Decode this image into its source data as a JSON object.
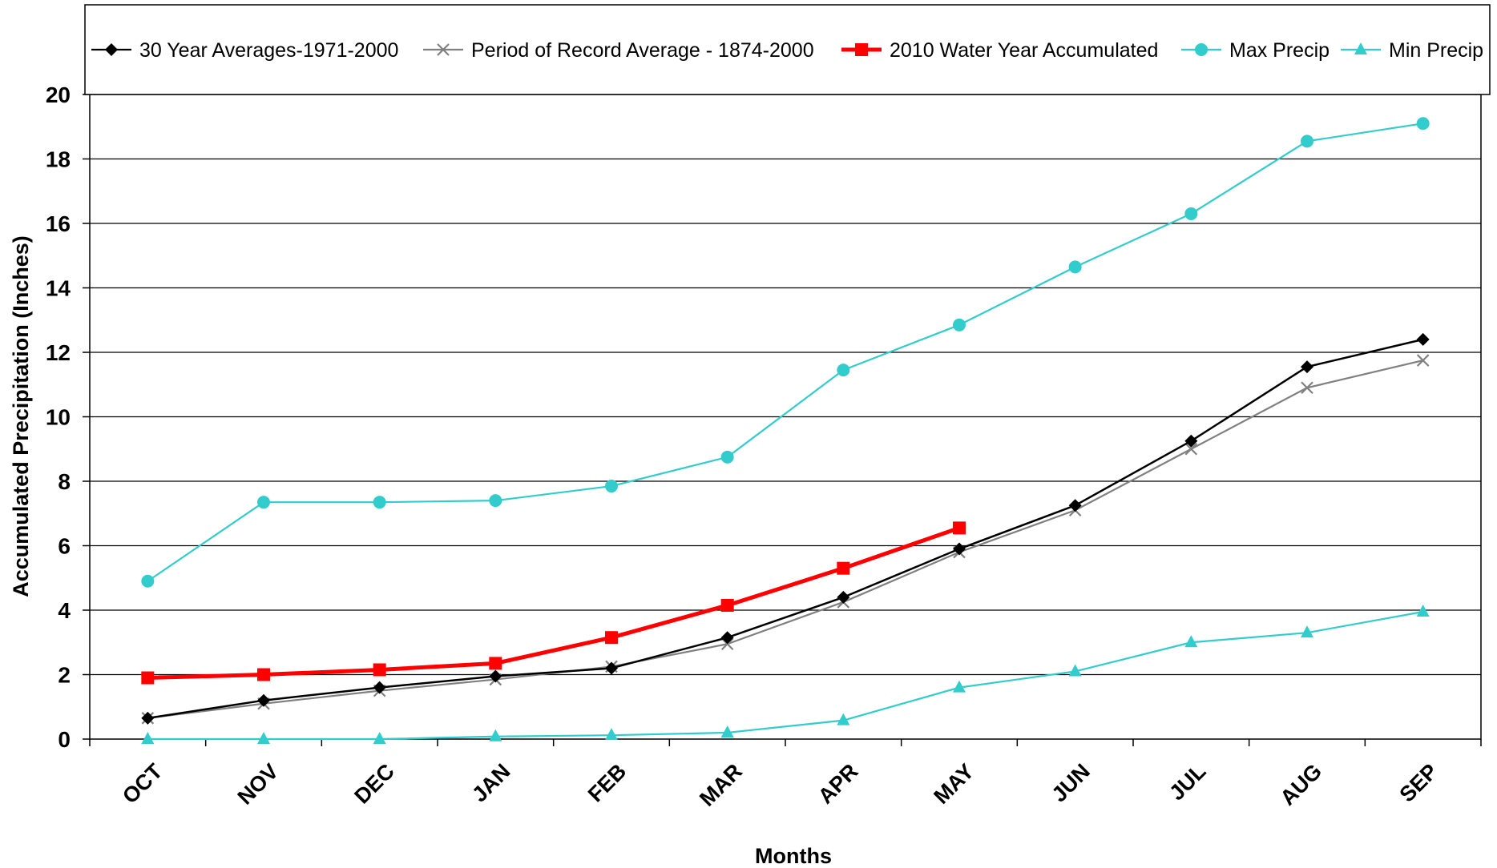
{
  "chart_data": {
    "type": "line",
    "xlabel": "Months",
    "ylabel": "Accumulated Precipitation (Inches)",
    "categories": [
      "OCT",
      "NOV",
      "DEC",
      "JAN",
      "FEB",
      "MAR",
      "APR",
      "MAY",
      "JUN",
      "JUL",
      "AUG",
      "SEP"
    ],
    "ylim": [
      0,
      20
    ],
    "yticks": [
      "0",
      "2",
      "4",
      "6",
      "8",
      "10",
      "12",
      "14",
      "16",
      "18",
      "20"
    ],
    "grid": true,
    "legend_position": "top",
    "series": [
      {
        "name": "30 Year Averages-1971-2000",
        "color": "#000000",
        "marker": "diamond",
        "values": [
          0.65,
          1.2,
          1.6,
          1.95,
          2.2,
          3.15,
          4.4,
          5.9,
          7.25,
          9.25,
          11.55,
          12.4
        ]
      },
      {
        "name": "Period of Record Average - 1874-2000",
        "color": "#808080",
        "marker": "x",
        "values": [
          0.65,
          1.1,
          1.5,
          1.85,
          2.25,
          2.95,
          4.25,
          5.8,
          7.1,
          9.0,
          10.9,
          11.75
        ]
      },
      {
        "name": "2010 Water Year Accumulated",
        "color": "#ff0000",
        "marker": "square",
        "values": [
          1.9,
          2.0,
          2.15,
          2.35,
          3.15,
          4.15,
          5.3,
          6.55,
          null,
          null,
          null,
          null
        ]
      },
      {
        "name": "Max Precip",
        "color": "#33cccc",
        "marker": "circle",
        "values": [
          4.9,
          7.35,
          7.35,
          7.4,
          7.85,
          8.75,
          11.45,
          12.85,
          14.65,
          16.3,
          18.55,
          19.1
        ]
      },
      {
        "name": "Min Precip",
        "color": "#33cccc",
        "marker": "triangle",
        "values": [
          0.0,
          0.0,
          0.0,
          0.08,
          0.12,
          0.2,
          0.58,
          1.6,
          2.1,
          3.0,
          3.3,
          3.95
        ]
      }
    ]
  }
}
